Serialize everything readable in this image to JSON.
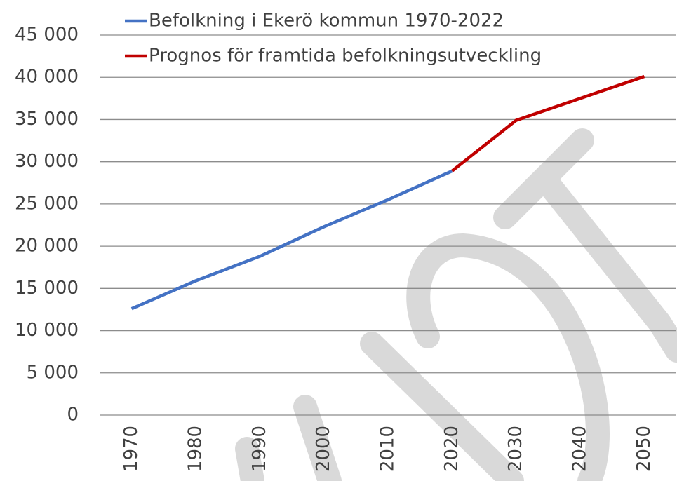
{
  "chart_data": {
    "type": "line",
    "categories": [
      "1970",
      "1980",
      "1990",
      "2000",
      "2010",
      "2020",
      "2030",
      "2040",
      "2050"
    ],
    "series": [
      {
        "name": "Befolkning i Ekerö kommun 1970-2022",
        "color": "#4472c4",
        "values": [
          12600,
          15900,
          18800,
          22300,
          25500,
          28900,
          null,
          null,
          null
        ]
      },
      {
        "name": "Prognos för framtida befolkningsutveckling",
        "color": "#c00000",
        "values": [
          null,
          null,
          null,
          null,
          null,
          28900,
          34900,
          37500,
          40100
        ]
      }
    ],
    "ylim": [
      0,
      45000
    ],
    "yticks": [
      0,
      {
        "value": 5000,
        "label": "5 000"
      },
      {
        "value": 10000,
        "label": "10 000"
      },
      {
        "value": 15000,
        "label": "15 000"
      },
      {
        "value": 20000,
        "label": "20 000"
      },
      {
        "value": 25000,
        "label": "25 000"
      },
      {
        "value": 30000,
        "label": "30 000"
      },
      {
        "value": 35000,
        "label": "35 000"
      },
      {
        "value": 40000,
        "label": "40 000"
      },
      {
        "value": 45000,
        "label": "45 000"
      }
    ],
    "grid": true,
    "legend": "top"
  }
}
